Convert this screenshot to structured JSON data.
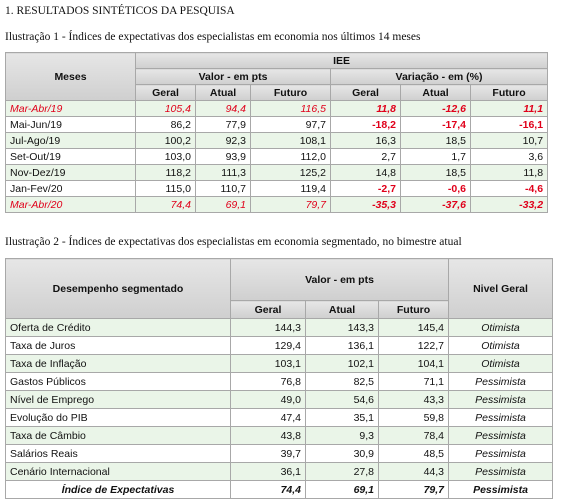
{
  "heading": "1. RESULTADOS SINTÉTICOS DA PESQUISA",
  "illustrations": [
    {
      "caption": "Ilustração 1 - Índices de expectativas dos especialistas em economia nos últimos 14 meses",
      "table": {
        "header": {
          "row_label": "Meses",
          "group": "IEE",
          "blocks": [
            "Valor - em pts",
            "Variação  - em (%)"
          ],
          "columns": [
            "Geral",
            "Atual",
            "Futuro",
            "Geral",
            "Atual",
            "Futuro"
          ]
        },
        "rows": [
          [
            "Mar-Abr/19",
            "105,4",
            "94,4",
            "116,5",
            "11,8",
            "-12,6",
            "11,1"
          ],
          [
            "Mai-Jun/19",
            "86,2",
            "77,9",
            "97,7",
            "-18,2",
            "-17,4",
            "-16,1"
          ],
          [
            "Jul-Ago/19",
            "100,2",
            "92,3",
            "108,1",
            "16,3",
            "18,5",
            "10,7"
          ],
          [
            "Set-Out/19",
            "103,0",
            "93,9",
            "112,0",
            "2,7",
            "1,7",
            "3,6"
          ],
          [
            "Nov-Dez/19",
            "118,2",
            "111,3",
            "125,2",
            "14,8",
            "18,5",
            "11,8"
          ],
          [
            "Jan-Fev/20",
            "115,0",
            "110,7",
            "119,4",
            "-2,7",
            "-0,6",
            "-4,6"
          ],
          [
            "Mar-Abr/20",
            "74,4",
            "69,1",
            "79,7",
            "-35,3",
            "-37,6",
            "-33,2"
          ]
        ]
      }
    },
    {
      "caption": "Ilustração 2 - Índices de expectativas dos especialistas em economia segmentado, no bimestre atual",
      "table": {
        "header": {
          "row_label": "Desempenho segmentado",
          "block": "Valor - em pts",
          "level": "Nivel Geral",
          "columns": [
            "Geral",
            "Atual",
            "Futuro"
          ]
        },
        "rows": [
          [
            "Oferta de Crédito",
            "144,3",
            "143,3",
            "145,4",
            "Otimista"
          ],
          [
            "Taxa de Juros",
            "129,4",
            "136,1",
            "122,7",
            "Otimista"
          ],
          [
            "Taxa de Inflação",
            "103,1",
            "102,1",
            "104,1",
            "Otimista"
          ],
          [
            "Gastos Públicos",
            "76,8",
            "82,5",
            "71,1",
            "Pessimista"
          ],
          [
            "Nível de Emprego",
            "49,0",
            "54,6",
            "43,3",
            "Pessimista"
          ],
          [
            "Evolução do PIB",
            "47,4",
            "35,1",
            "59,8",
            "Pessimista"
          ],
          [
            "Taxa de Câmbio",
            "43,8",
            "9,3",
            "78,4",
            "Pessimista"
          ],
          [
            "Salários Reais",
            "39,7",
            "30,9",
            "48,5",
            "Pessimista"
          ],
          [
            "Cenário Internacional",
            "36,1",
            "27,8",
            "44,3",
            "Pessimista"
          ],
          [
            "Índice de Expectativas",
            "74,4",
            "69,1",
            "79,7",
            "Pessimista"
          ]
        ]
      }
    }
  ]
}
